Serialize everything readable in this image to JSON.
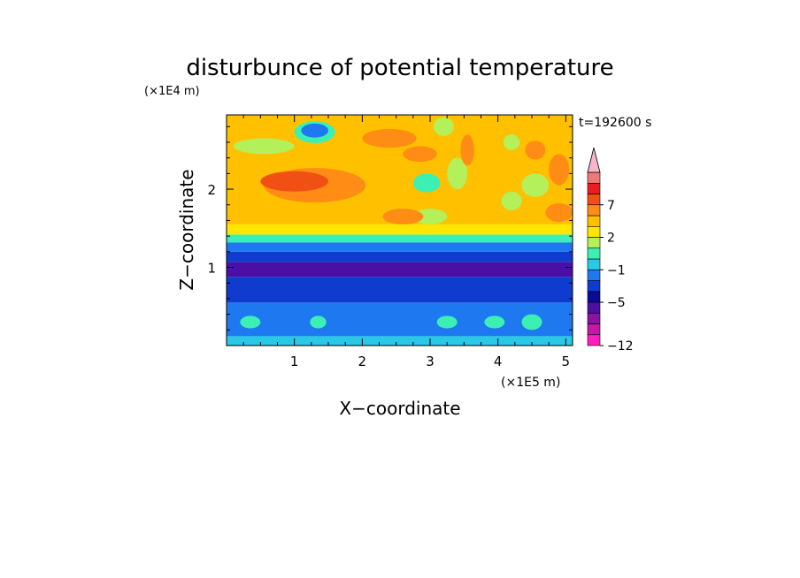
{
  "chart_data": {
    "type": "heatmap",
    "title": "disturbunce of potential temperature",
    "time_label": "t=192600 s",
    "xlabel": "X−coordinate",
    "ylabel": "Z−coordinate",
    "x_unit": "(×1E5 m)",
    "y_unit": "(×1E4 m)",
    "xlim": [
      0.0,
      5.1
    ],
    "ylim": [
      0.0,
      2.95
    ],
    "x_ticks": [
      1,
      2,
      3,
      4,
      5
    ],
    "y_ticks": [
      1,
      2
    ],
    "x_tick_labels": [
      "1",
      "2",
      "3",
      "4",
      "5"
    ],
    "y_tick_labels": [
      "1",
      "2"
    ],
    "colorbar": {
      "levels": [
        -12,
        -10,
        -8,
        -6,
        -5,
        -4,
        -2,
        -1,
        0,
        1,
        2,
        4,
        6,
        7,
        8,
        10
      ],
      "colors": [
        "#ff1fc0",
        "#c21aa6",
        "#8a14a0",
        "#4b0fa6",
        "#0a0a96",
        "#0f3ccf",
        "#1e78f0",
        "#28c8e6",
        "#3cf0b4",
        "#b4f05a",
        "#ffe600",
        "#ffc000",
        "#ff8c14",
        "#f05014",
        "#ea1e1e",
        "#f07878",
        "#f8b4c8"
      ],
      "tick_labels": [
        "7",
        "2",
        "−1",
        "−5",
        "−12"
      ],
      "tick_values": [
        7,
        2,
        -1,
        -5,
        -12
      ]
    },
    "layers": [
      {
        "z": [
          0.0,
          0.12
        ],
        "value": -1.5
      },
      {
        "z": [
          0.12,
          0.55
        ],
        "value": -3.0
      },
      {
        "z": [
          0.55,
          0.88
        ],
        "value": -5.0
      },
      {
        "z": [
          0.88,
          1.07
        ],
        "value": -6.5
      },
      {
        "z": [
          1.07,
          1.2
        ],
        "value": -5.0
      },
      {
        "z": [
          1.2,
          1.32
        ],
        "value": -3.0
      },
      {
        "z": [
          1.32,
          1.42
        ],
        "value": -0.5
      },
      {
        "z": [
          1.42,
          1.55
        ],
        "value": 1.0
      },
      {
        "z": [
          1.55,
          2.95
        ],
        "value": 2.5
      }
    ],
    "blobs": [
      {
        "x": 1.3,
        "z": 2.05,
        "rx": 0.75,
        "rz": 0.22,
        "value": 5.0
      },
      {
        "x": 1.0,
        "z": 2.1,
        "rx": 0.5,
        "rz": 0.13,
        "value": 6.5
      },
      {
        "x": 1.3,
        "z": 2.73,
        "rx": 0.3,
        "rz": 0.14,
        "value": -1.0
      },
      {
        "x": 1.3,
        "z": 2.75,
        "rx": 0.2,
        "rz": 0.09,
        "value": -3.0
      },
      {
        "x": 0.55,
        "z": 2.55,
        "rx": 0.45,
        "rz": 0.1,
        "value": 0.5
      },
      {
        "x": 2.4,
        "z": 2.65,
        "rx": 0.4,
        "rz": 0.12,
        "value": 4.0
      },
      {
        "x": 2.85,
        "z": 2.45,
        "rx": 0.25,
        "rz": 0.1,
        "value": 5.0
      },
      {
        "x": 3.2,
        "z": 2.8,
        "rx": 0.15,
        "rz": 0.12,
        "value": 0.5
      },
      {
        "x": 2.95,
        "z": 2.08,
        "rx": 0.2,
        "rz": 0.12,
        "value": -1.0
      },
      {
        "x": 3.4,
        "z": 2.2,
        "rx": 0.15,
        "rz": 0.2,
        "value": 0.5
      },
      {
        "x": 3.55,
        "z": 2.5,
        "rx": 0.1,
        "rz": 0.2,
        "value": 5.0
      },
      {
        "x": 3.0,
        "z": 1.65,
        "rx": 0.25,
        "rz": 0.1,
        "value": 0.5
      },
      {
        "x": 2.6,
        "z": 1.65,
        "rx": 0.3,
        "rz": 0.1,
        "value": 4.0
      },
      {
        "x": 4.2,
        "z": 1.85,
        "rx": 0.15,
        "rz": 0.12,
        "value": 0.5
      },
      {
        "x": 4.55,
        "z": 2.05,
        "rx": 0.2,
        "rz": 0.15,
        "value": 0.5
      },
      {
        "x": 4.55,
        "z": 2.5,
        "rx": 0.15,
        "rz": 0.12,
        "value": 4.0
      },
      {
        "x": 4.9,
        "z": 2.25,
        "rx": 0.15,
        "rz": 0.2,
        "value": 5.0
      },
      {
        "x": 4.2,
        "z": 2.6,
        "rx": 0.12,
        "rz": 0.1,
        "value": 0.5
      },
      {
        "x": 4.9,
        "z": 1.7,
        "rx": 0.2,
        "rz": 0.12,
        "value": 4.0
      },
      {
        "x": 0.35,
        "z": 0.3,
        "rx": 0.15,
        "rz": 0.08,
        "value": -1.0
      },
      {
        "x": 1.35,
        "z": 0.3,
        "rx": 0.12,
        "rz": 0.08,
        "value": -1.0
      },
      {
        "x": 3.25,
        "z": 0.3,
        "rx": 0.15,
        "rz": 0.08,
        "value": -1.0
      },
      {
        "x": 3.95,
        "z": 0.3,
        "rx": 0.15,
        "rz": 0.08,
        "value": -1.0
      },
      {
        "x": 4.5,
        "z": 0.3,
        "rx": 0.15,
        "rz": 0.1,
        "value": -1.0
      }
    ]
  }
}
